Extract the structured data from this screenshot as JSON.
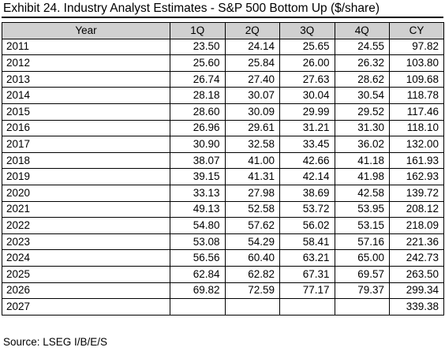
{
  "title": "Exhibit 24. Industry Analyst Estimates - S&P 500 Bottom Up ($/share)",
  "table": {
    "headers": [
      "Year",
      "1Q",
      "2Q",
      "3Q",
      "4Q",
      "CY"
    ],
    "rows": [
      [
        "2011",
        "23.50",
        "24.14",
        "25.65",
        "24.55",
        "97.82"
      ],
      [
        "2012",
        "25.60",
        "25.84",
        "26.00",
        "26.32",
        "103.80"
      ],
      [
        "2013",
        "26.74",
        "27.40",
        "27.63",
        "28.62",
        "109.68"
      ],
      [
        "2014",
        "28.18",
        "30.07",
        "30.04",
        "30.54",
        "118.78"
      ],
      [
        "2015",
        "28.60",
        "30.09",
        "29.99",
        "29.52",
        "117.46"
      ],
      [
        "2016",
        "26.96",
        "29.61",
        "31.21",
        "31.30",
        "118.10"
      ],
      [
        "2017",
        "30.90",
        "32.58",
        "33.45",
        "36.02",
        "132.00"
      ],
      [
        "2018",
        "38.07",
        "41.00",
        "42.66",
        "41.18",
        "161.93"
      ],
      [
        "2019",
        "39.15",
        "41.31",
        "42.14",
        "41.98",
        "162.93"
      ],
      [
        "2020",
        "33.13",
        "27.98",
        "38.69",
        "42.58",
        "139.72"
      ],
      [
        "2021",
        "49.13",
        "52.58",
        "53.72",
        "53.95",
        "208.12"
      ],
      [
        "2022",
        "54.80",
        "57.62",
        "56.02",
        "53.15",
        "218.09"
      ],
      [
        "2023",
        "53.08",
        "54.29",
        "58.41",
        "57.16",
        "221.36"
      ],
      [
        "2024",
        "56.56",
        "60.40",
        "63.21",
        "65.00",
        "242.73"
      ],
      [
        "2025",
        "62.84",
        "62.82",
        "67.31",
        "69.57",
        "263.50"
      ],
      [
        "2026",
        "69.82",
        "72.59",
        "77.17",
        "79.37",
        "299.34"
      ],
      [
        "2027",
        "",
        "",
        "",
        "",
        "339.38"
      ]
    ]
  },
  "source": "Source: LSEG I/B/E/S",
  "colors": {
    "header_fill": "#d0d0d0",
    "border": "#000000",
    "text": "#000000"
  }
}
